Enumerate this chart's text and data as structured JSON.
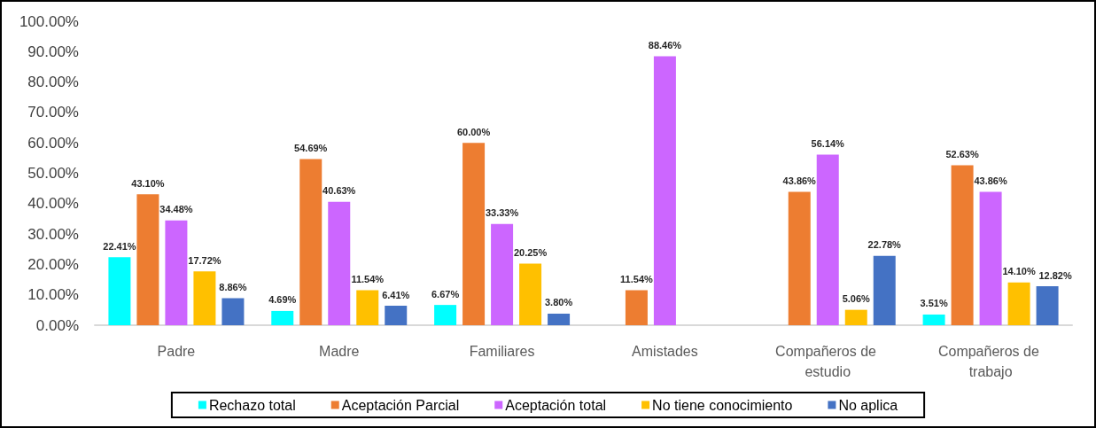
{
  "chart_data": {
    "type": "bar",
    "categories": [
      "Padre",
      "Madre",
      "Familiares",
      "Amistades",
      "Compañeros de estudio",
      "Compañeros de trabajo"
    ],
    "series": [
      {
        "name": "Rechazo total",
        "color": "#00ffff",
        "values": [
          22.41,
          4.69,
          6.67,
          null,
          null,
          3.51
        ],
        "value_labels": [
          "22.41%",
          "4.69%",
          "6.67%",
          null,
          null,
          "3.51%"
        ]
      },
      {
        "name": "Aceptación Parcial",
        "color": "#ed7d31",
        "values": [
          43.1,
          54.69,
          60.0,
          11.54,
          43.86,
          52.63
        ],
        "value_labels": [
          "43.10%",
          "54.69%",
          "60.00%",
          "11.54%",
          "43.86%",
          "52.63%"
        ]
      },
      {
        "name": "Aceptación total",
        "color": "#cc66ff",
        "values": [
          34.48,
          40.63,
          33.33,
          88.46,
          56.14,
          43.86
        ],
        "value_labels": [
          "34.48%",
          "40.63%",
          "33.33%",
          "88.46%",
          "56.14%",
          "43.86%"
        ]
      },
      {
        "name": "No tiene conocimiento",
        "color": "#ffc000",
        "values": [
          17.72,
          11.54,
          20.25,
          null,
          5.06,
          14.1
        ],
        "value_labels": [
          "17.72%",
          "11.54%",
          "20.25%",
          null,
          "5.06%",
          "14.10%"
        ]
      },
      {
        "name": "No aplica",
        "color": "#4472c4",
        "values": [
          8.86,
          6.41,
          3.8,
          null,
          22.78,
          12.82
        ],
        "value_labels": [
          "8.86%",
          "6.41%",
          "3.80%",
          null,
          "22.78%",
          "12.82%"
        ]
      }
    ],
    "ylim": [
      0,
      100
    ],
    "yticks": [
      {
        "value": 0,
        "label": "0.00%"
      },
      {
        "value": 10,
        "label": "10.00%"
      },
      {
        "value": 20,
        "label": "20.00%"
      },
      {
        "value": 30,
        "label": "30.00%"
      },
      {
        "value": 40,
        "label": "40.00%"
      },
      {
        "value": 50,
        "label": "50.00%"
      },
      {
        "value": 60,
        "label": "60.00%"
      },
      {
        "value": 70,
        "label": "70.00%"
      },
      {
        "value": 80,
        "label": "80.00%"
      },
      {
        "value": 90,
        "label": "90.00%"
      },
      {
        "value": 100,
        "label": "100.00%"
      }
    ],
    "grid": false,
    "legend": "bottom"
  }
}
